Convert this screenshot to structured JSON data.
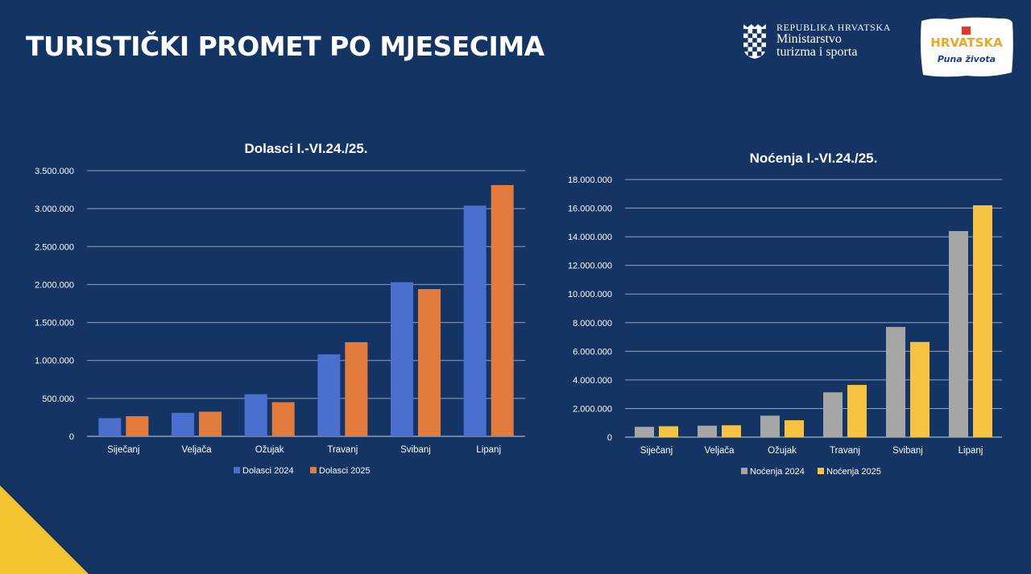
{
  "header": {
    "title": "TURISTIČKI PROMET PO MJESECIMA",
    "ministry_line1": "REPUBLIKA HRVATSKA",
    "ministry_line2": "Ministarstvo",
    "ministry_line3": "turizma i sporta",
    "logo_word": "HRVATSKA",
    "logo_tagline": "Puna života"
  },
  "colors": {
    "background": "#143564",
    "blue": "#4a6fcf",
    "orange": "#e37b3d",
    "gray": "#a6a6a6",
    "yellow": "#f5c242",
    "accent_corner": "#f4c430"
  },
  "chart_data": [
    {
      "type": "bar",
      "title": "Dolasci I.-VI.24./25.",
      "categories": [
        "Siječanj",
        "Veljača",
        "Ožujak",
        "Travanj",
        "Svibanj",
        "Lipanj"
      ],
      "series": [
        {
          "name": "Dolasci 2024",
          "values": [
            240000,
            310000,
            555000,
            1080000,
            2030000,
            3040000
          ]
        },
        {
          "name": "Dolasci 2025",
          "values": [
            265000,
            325000,
            450000,
            1240000,
            1940000,
            3310000
          ]
        }
      ],
      "ylim": [
        0,
        3500000
      ],
      "yticks": [
        0,
        500000,
        1000000,
        1500000,
        2000000,
        2500000,
        3000000,
        3500000
      ],
      "ytick_labels": [
        "0",
        "500.000",
        "1.000.000",
        "1.500.000",
        "2.000.000",
        "2.500.000",
        "3.000.000",
        "3.500.000"
      ],
      "legend": "bottom",
      "grid": true
    },
    {
      "type": "bar",
      "title": "Noćenja I.-VI.24./25.",
      "categories": [
        "Siječanj",
        "Veljača",
        "Ožujak",
        "Travanj",
        "Svibanj",
        "Lipanj"
      ],
      "series": [
        {
          "name": "Noćenja 2024",
          "values": [
            720000,
            800000,
            1500000,
            3130000,
            7700000,
            14400000
          ]
        },
        {
          "name": "Noćenja 2025",
          "values": [
            760000,
            830000,
            1180000,
            3650000,
            6650000,
            16200000
          ]
        }
      ],
      "ylim": [
        0,
        18000000
      ],
      "yticks": [
        0,
        2000000,
        4000000,
        6000000,
        8000000,
        10000000,
        12000000,
        14000000,
        16000000,
        18000000
      ],
      "ytick_labels": [
        "0",
        "2.000.000",
        "4.000.000",
        "6.000.000",
        "8.000.000",
        "10.000.000",
        "12.000.000",
        "14.000.000",
        "16.000.000",
        "18.000.000"
      ],
      "legend": "bottom",
      "grid": true
    }
  ]
}
